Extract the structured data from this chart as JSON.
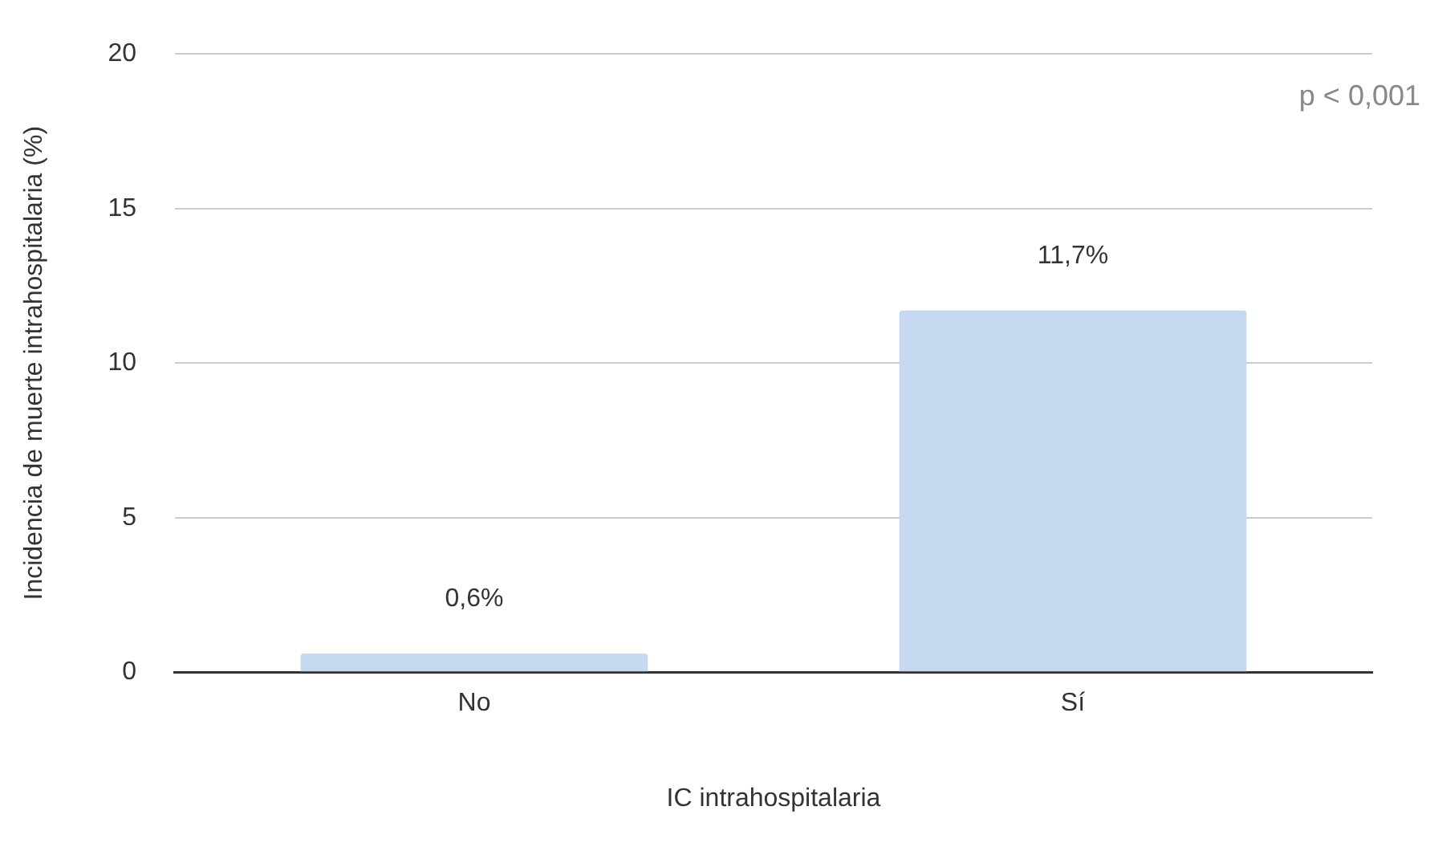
{
  "chart_data": {
    "type": "bar",
    "xlabel": "IC intrahospitalaria",
    "ylabel": "Incidencia de muerte intrahospitalaria (%)",
    "categories": [
      "No",
      "Sí"
    ],
    "values": [
      0.6,
      11.7
    ],
    "value_labels": [
      "0,6%",
      "11,7%"
    ],
    "color": "#c6d8f0",
    "ylim": [
      0,
      20
    ],
    "yticks": [
      0,
      5,
      10,
      15,
      20
    ],
    "grid": "y",
    "legend": false,
    "annotations": [
      "p < 0,001"
    ]
  }
}
